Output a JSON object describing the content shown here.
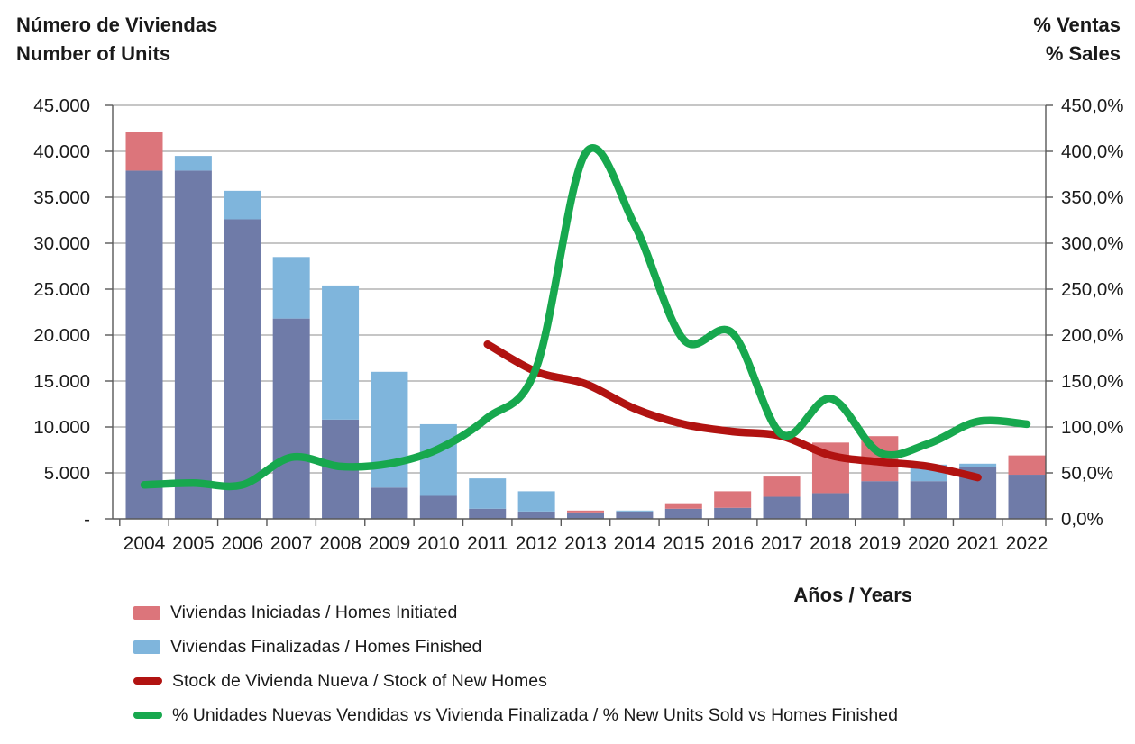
{
  "titles": {
    "left_line1": "Número de Viviendas",
    "left_line2": "Number of Units",
    "right_line1": "% Ventas",
    "right_line2": "% Sales",
    "x_axis": "Años / Years"
  },
  "legend": [
    {
      "swatch": "bar",
      "color": "#DC757B",
      "label": "Viviendas Iniciadas / Homes Initiated"
    },
    {
      "swatch": "bar",
      "color": "#7FB5DC",
      "label": "Viviendas Finalizadas / Homes Finished"
    },
    {
      "swatch": "line",
      "color": "#B11311",
      "label": "Stock de Vivienda Nueva / Stock of New Homes"
    },
    {
      "swatch": "line",
      "color": "#17A84E",
      "label": "% Unidades Nuevas Vendidas vs Vivienda Finalizada / % New Units Sold vs Homes Finished"
    }
  ],
  "chart_data": {
    "type": "combo (overlapped bars + smoothed lines, dual axis)",
    "categories": [
      "2004",
      "2005",
      "2006",
      "2007",
      "2008",
      "2009",
      "2010",
      "2011",
      "2012",
      "2013",
      "2014",
      "2015",
      "2016",
      "2017",
      "2018",
      "2019",
      "2020",
      "2021",
      "2022"
    ],
    "series": [
      {
        "name": "Viviendas Iniciadas / Homes Initiated",
        "type": "bar",
        "axis": "left",
        "color": "#DC757B",
        "values": [
          42100,
          37900,
          32600,
          21800,
          10800,
          3400,
          2500,
          1100,
          800,
          900,
          800,
          1700,
          3000,
          4600,
          8300,
          9000,
          4100,
          5600,
          6900
        ]
      },
      {
        "name": "Viviendas Finalizadas / Homes Finished",
        "type": "bar",
        "axis": "left",
        "color": "#7FB5DC",
        "values": [
          37900,
          39500,
          35700,
          28500,
          25400,
          16000,
          10300,
          4400,
          3000,
          700,
          900,
          1100,
          1200,
          2400,
          2800,
          4100,
          5900,
          6000,
          4800
        ]
      },
      {
        "name": "Stock de Vivienda Nueva / Stock of New Homes",
        "type": "line",
        "axis": "left",
        "color": "#B11311",
        "values": [
          null,
          null,
          null,
          null,
          null,
          null,
          null,
          19000,
          16000,
          14700,
          12000,
          10300,
          9500,
          9000,
          6900,
          6200,
          5700,
          4500,
          null
        ]
      },
      {
        "name": "% Unidades Nuevas Vendidas vs Vivienda Finalizada / % New Units Sold vs Homes Finished",
        "type": "line",
        "axis": "right",
        "color": "#17A84E",
        "values": [
          37,
          39,
          37,
          67,
          57,
          60,
          76,
          110,
          165,
          398,
          320,
          195,
          202,
          92,
          131,
          72,
          82,
          106,
          103
        ]
      }
    ],
    "bar_overlap_color": "#6F7BA8",
    "left_axis": {
      "min": 0,
      "max": 45000,
      "step": 5000,
      "tick_labels": [
        "45.000",
        "40.000",
        "35.000",
        "30.000",
        "25.000",
        "20.000",
        "15.000",
        "10.000",
        "5.000",
        "-"
      ]
    },
    "right_axis": {
      "min": 0,
      "max": 450,
      "step": 50,
      "tick_labels": [
        "450,0%",
        "400,0%",
        "350,0%",
        "300,0%",
        "250,0%",
        "200,0%",
        "150,0%",
        "100,0%",
        "50,0%",
        "0,0%"
      ]
    },
    "grid": true,
    "legend_position": "bottom-left"
  }
}
